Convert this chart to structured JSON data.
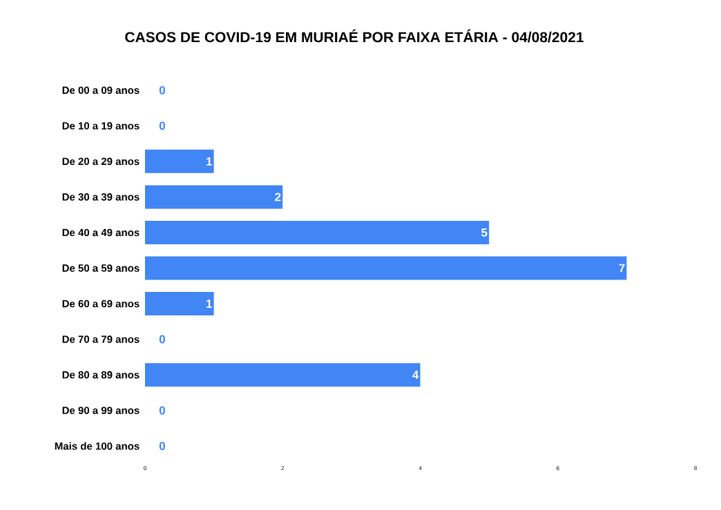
{
  "chart_data": {
    "type": "bar",
    "orientation": "horizontal",
    "title": "CASOS DE COVID-19 EM MURIAÉ POR FAIXA ETÁRIA - 04/08/2021",
    "categories": [
      "De 00 a 09 anos",
      "De 10 a 19 anos",
      "De 20 a 29 anos",
      "De 30 a 39 anos",
      "De 40 a 49 anos",
      "De 50 a 59 anos",
      "De 60 a 69 anos",
      "De 70 a 79 anos",
      "De 80 a 89 anos",
      "De 90 a 99 anos",
      "Mais de 100 anos"
    ],
    "values": [
      0,
      0,
      1,
      2,
      5,
      7,
      1,
      0,
      4,
      0,
      0
    ],
    "color": "#4285f4",
    "xlim": [
      0,
      8
    ],
    "xticks": [
      0,
      2,
      4,
      6,
      8
    ],
    "data_labels": true
  }
}
